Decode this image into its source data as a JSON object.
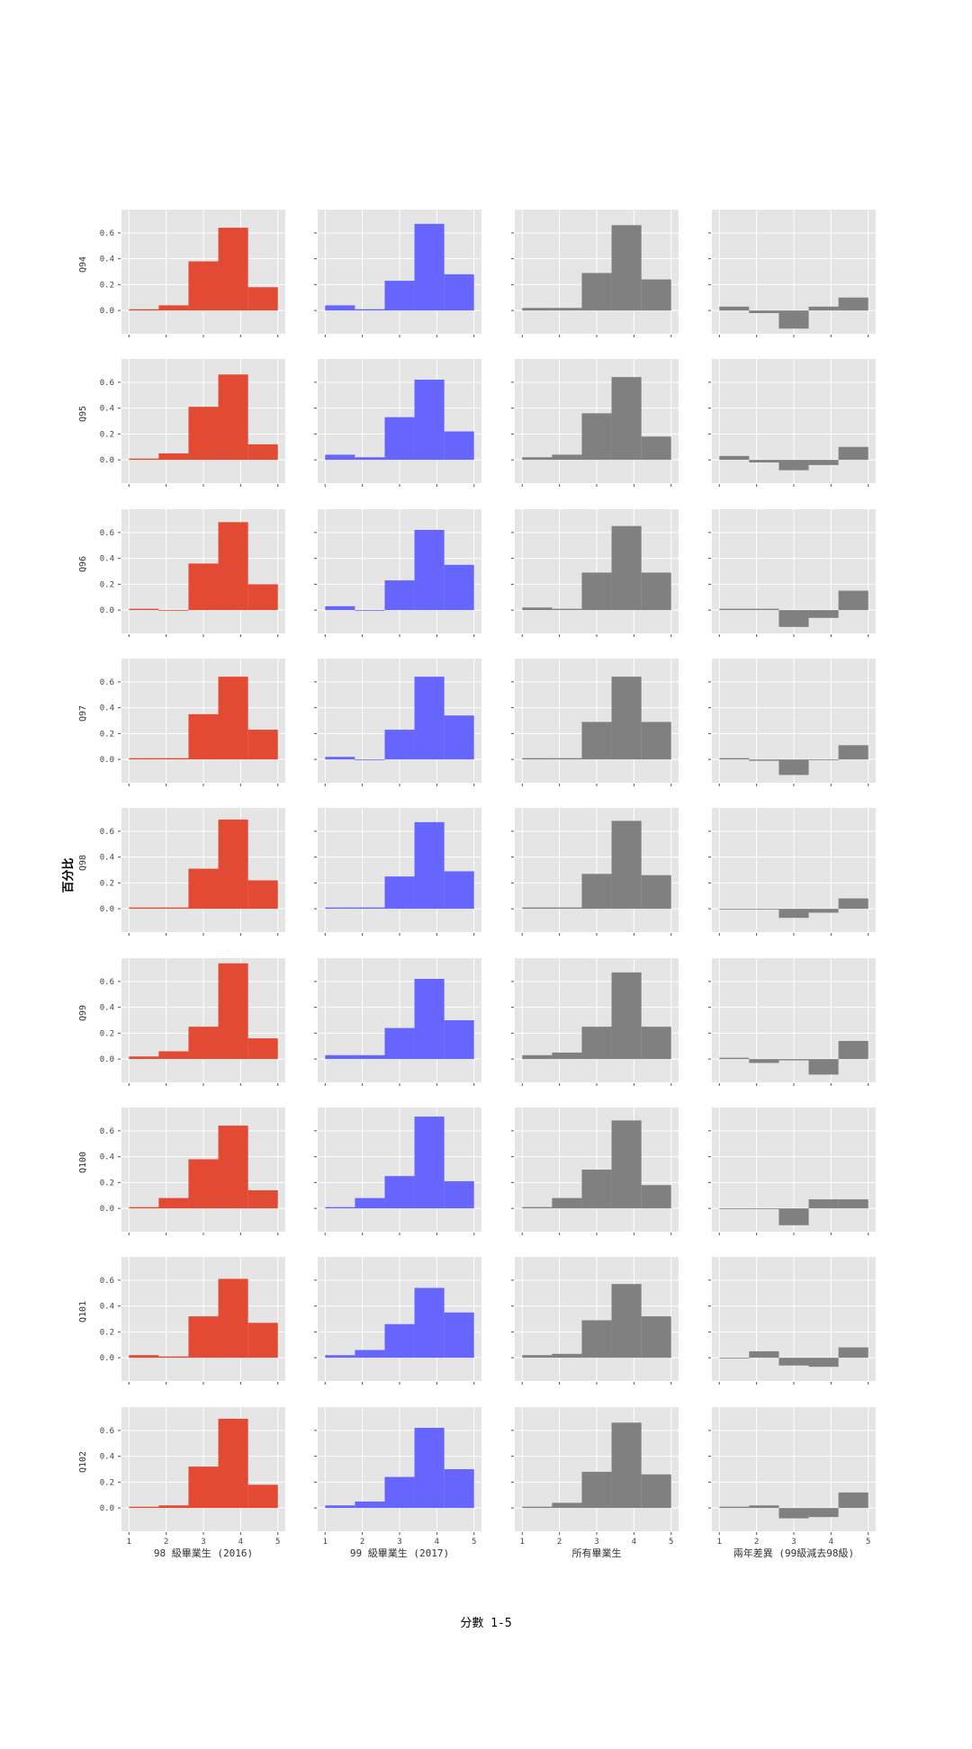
{
  "figure": {
    "ylabel": "百分比",
    "xlabel": "分數 1-5",
    "colors": {
      "col0": "#E24A33",
      "col1": "#6666FF",
      "col2": "#808080",
      "col3": "#808080",
      "panel_bg": "#E5E5E5",
      "grid": "#FFFFFF"
    }
  },
  "chart_data": {
    "type": "bar",
    "layout": "small-multiples grid (9 rows x 4 columns)",
    "columns": [
      "98 級畢業生 (2016)",
      "99 級畢業生 (2017)",
      "所有畢業生",
      "兩年差異 (99級減去98級)"
    ],
    "rows": [
      "Q94",
      "Q95",
      "Q96",
      "Q97",
      "Q98",
      "Q99",
      "Q100",
      "Q101",
      "Q102"
    ],
    "categories": [
      1,
      2,
      3,
      4,
      5
    ],
    "x_ticks": [
      1,
      2,
      3,
      4,
      5
    ],
    "y_ticks": [
      0.0,
      0.2,
      0.4,
      0.6
    ],
    "y_tick_labels": [
      "0.0",
      "0.2",
      "0.4",
      "0.6"
    ],
    "ylim": [
      -0.18,
      0.78
    ],
    "grid": true,
    "values": [
      [
        [
          0.01,
          0.04,
          0.38,
          0.64,
          0.18
        ],
        [
          0.04,
          0.01,
          0.23,
          0.67,
          0.28
        ],
        [
          0.02,
          0.02,
          0.29,
          0.66,
          0.24
        ],
        [
          0.03,
          -0.02,
          -0.14,
          0.03,
          0.1
        ]
      ],
      [
        [
          0.01,
          0.05,
          0.41,
          0.66,
          0.12
        ],
        [
          0.04,
          0.02,
          0.33,
          0.62,
          0.22
        ],
        [
          0.02,
          0.04,
          0.36,
          0.64,
          0.18
        ],
        [
          0.03,
          -0.02,
          -0.08,
          -0.04,
          0.1
        ]
      ],
      [
        [
          0.01,
          0.0,
          0.36,
          0.68,
          0.2
        ],
        [
          0.03,
          0.0,
          0.23,
          0.62,
          0.35
        ],
        [
          0.02,
          0.01,
          0.29,
          0.65,
          0.29
        ],
        [
          0.01,
          0.01,
          -0.13,
          -0.06,
          0.15
        ]
      ],
      [
        [
          0.01,
          0.01,
          0.35,
          0.64,
          0.23
        ],
        [
          0.02,
          0.0,
          0.23,
          0.64,
          0.34
        ],
        [
          0.01,
          0.01,
          0.29,
          0.64,
          0.29
        ],
        [
          0.01,
          -0.01,
          -0.12,
          0.0,
          0.11
        ]
      ],
      [
        [
          0.01,
          0.01,
          0.31,
          0.69,
          0.22
        ],
        [
          0.01,
          0.01,
          0.25,
          0.67,
          0.29
        ],
        [
          0.01,
          0.01,
          0.27,
          0.68,
          0.26
        ],
        [
          0.0,
          0.0,
          -0.07,
          -0.03,
          0.08
        ]
      ],
      [
        [
          0.02,
          0.06,
          0.25,
          0.74,
          0.16
        ],
        [
          0.03,
          0.03,
          0.24,
          0.62,
          0.3
        ],
        [
          0.03,
          0.05,
          0.25,
          0.67,
          0.25
        ],
        [
          0.01,
          -0.03,
          -0.01,
          -0.12,
          0.14
        ]
      ],
      [
        [
          0.01,
          0.08,
          0.38,
          0.64,
          0.14
        ],
        [
          0.01,
          0.08,
          0.25,
          0.71,
          0.21
        ],
        [
          0.01,
          0.08,
          0.3,
          0.68,
          0.18
        ],
        [
          0.0,
          0.0,
          -0.13,
          0.07,
          0.07
        ]
      ],
      [
        [
          0.02,
          0.01,
          0.32,
          0.61,
          0.27
        ],
        [
          0.02,
          0.06,
          0.26,
          0.54,
          0.35
        ],
        [
          0.02,
          0.03,
          0.29,
          0.57,
          0.32
        ],
        [
          0.0,
          0.05,
          -0.06,
          -0.07,
          0.08
        ]
      ],
      [
        [
          0.01,
          0.02,
          0.32,
          0.69,
          0.18
        ],
        [
          0.02,
          0.05,
          0.24,
          0.62,
          0.3
        ],
        [
          0.01,
          0.04,
          0.28,
          0.66,
          0.26
        ],
        [
          0.01,
          0.02,
          -0.08,
          -0.07,
          0.12
        ]
      ]
    ]
  }
}
